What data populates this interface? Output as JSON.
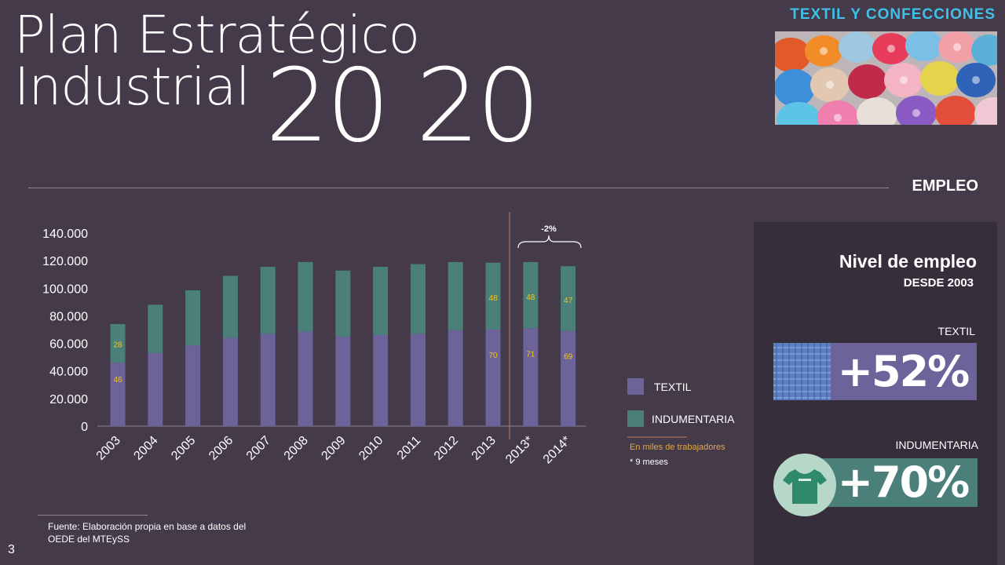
{
  "header": {
    "title_line1": "Plan Estratégico",
    "title_line2": "Industrial",
    "title_year": "20 20",
    "sector": "TEXTIL Y CONFECCIONES",
    "section": "EMPLEO"
  },
  "chart_data": {
    "type": "bar",
    "stacked": true,
    "categories": [
      "2003",
      "2004",
      "2005",
      "2006",
      "2007",
      "2008",
      "2009",
      "2010",
      "2011",
      "2012",
      "2013",
      "2013*",
      "2014*"
    ],
    "series": [
      {
        "name": "TEXTIL",
        "color": "#6b6399",
        "values": [
          46000,
          53000,
          58500,
          64000,
          67000,
          68500,
          65000,
          66000,
          67000,
          69500,
          70000,
          71000,
          69000
        ]
      },
      {
        "name": "INDUMENTARIA",
        "color": "#4b7f7a",
        "values": [
          28000,
          35000,
          40000,
          45000,
          48500,
          50500,
          47800,
          49500,
          50500,
          49500,
          48500,
          48000,
          47000
        ]
      }
    ],
    "ylim": [
      0,
      140000
    ],
    "yticks": [
      "0",
      "20.000",
      "40.000",
      "60.000",
      "80.000",
      "100.000",
      "120.000",
      "140.000"
    ],
    "data_labels": [
      {
        "category": "2003",
        "series": "TEXTIL",
        "text": "46"
      },
      {
        "category": "2003",
        "series": "INDUMENTARIA",
        "text": "28"
      },
      {
        "category": "2013",
        "series": "TEXTIL",
        "text": "70"
      },
      {
        "category": "2013",
        "series": "INDUMENTARIA",
        "text": "48"
      },
      {
        "category": "2013*",
        "series": "TEXTIL",
        "text": "71"
      },
      {
        "category": "2013*",
        "series": "INDUMENTARIA",
        "text": "48"
      },
      {
        "category": "2014*",
        "series": "TEXTIL",
        "text": "69"
      },
      {
        "category": "2014*",
        "series": "INDUMENTARIA",
        "text": "47"
      }
    ],
    "annotation": "-2%",
    "legend_position": "right",
    "grid": false,
    "unit_note": "En miles de trabajadores",
    "footnote": "* 9 meses"
  },
  "panel": {
    "title": "Nivel de empleo",
    "subtitle": "DESDE 2003",
    "textil_label": "TEXTIL",
    "textil_value": "+52%",
    "ind_label": "INDUMENTARIA",
    "ind_value": "+70%"
  },
  "source": "Fuente: Elaboración propia en base a datos del OEDE del MTEySS",
  "page_number": "3",
  "colors": {
    "background": "#443a49",
    "panel": "#372e3b",
    "accent": "#3fc1e8",
    "label": "#f5c518"
  }
}
